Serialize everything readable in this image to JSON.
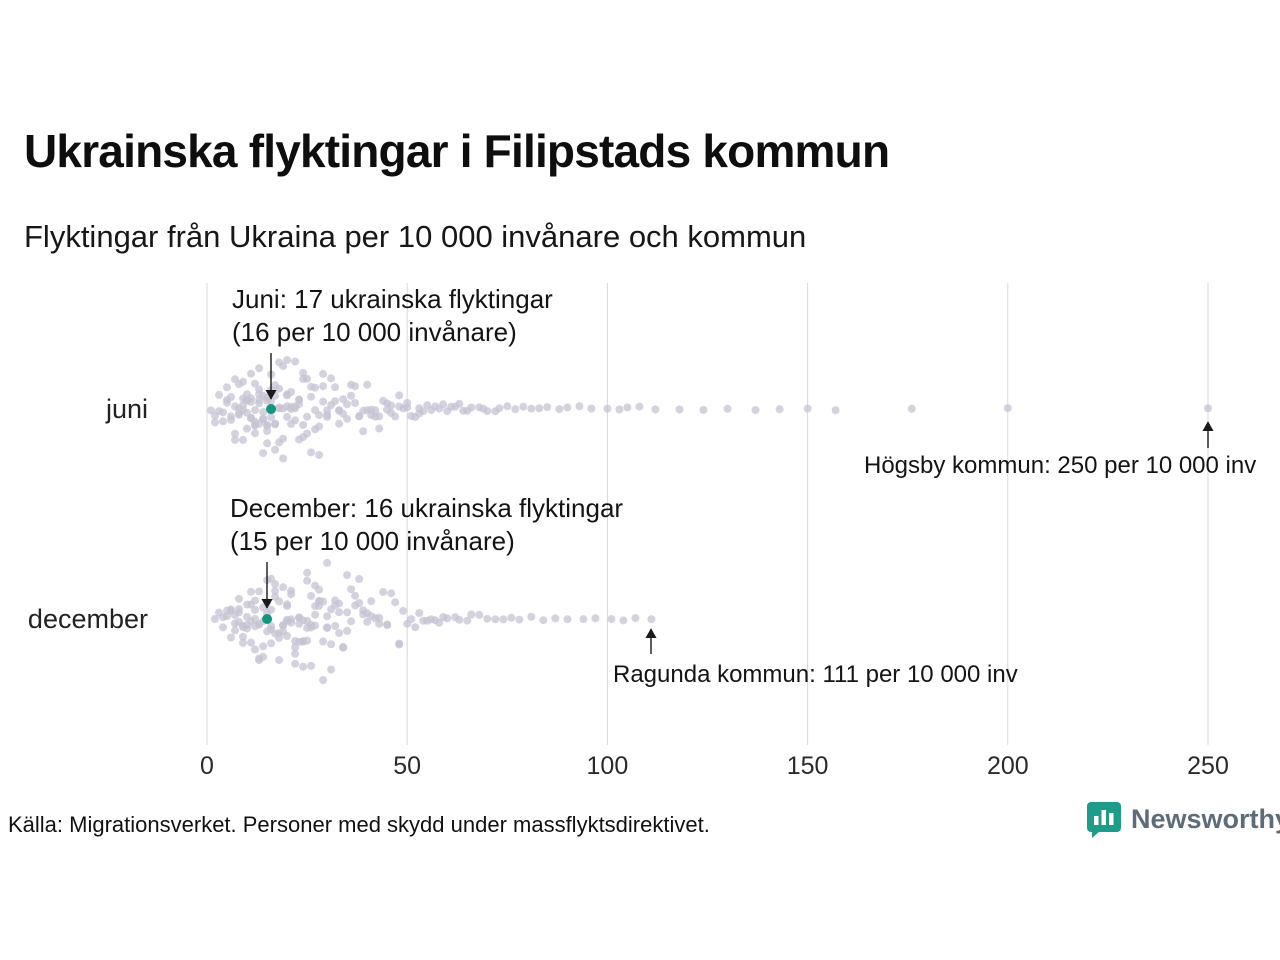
{
  "title": "Ukrainska flyktingar i Filipstads kommun",
  "subtitle": "Flyktingar från Ukraina per 10 000 invånare och kommun",
  "source": "Källa: Migrationsverket. Personer med skydd under massflyktsdirektivet.",
  "logo": {
    "text": "Newsworthy"
  },
  "colors": {
    "dot": "#c6c3d3",
    "highlight": "#11967c",
    "grid": "#d8d8d8",
    "arrow": "#1a1a1a",
    "logo_teal": "#1e9c8a",
    "logo_text": "#5e6c7a"
  },
  "chart_data": {
    "type": "scatter",
    "variant": "beeswarm-strip",
    "title": "Ukrainska flyktingar i Filipstads kommun",
    "xlabel": "Flyktingar från Ukraina per 10 000 invånare och kommun",
    "xlim": [
      0,
      250
    ],
    "x_ticks": [
      0,
      50,
      100,
      150,
      200,
      250
    ],
    "grid": "vertical",
    "rows": [
      {
        "label": "juni",
        "highlight": {
          "x": 16,
          "line1": "Juni: 17 ukrainska flyktingar",
          "line2": "(16 per 10 000 invånare)"
        },
        "outlier": {
          "x": 250,
          "text": "Högsby kommun: 250 per 10 000 inv"
        },
        "values": [
          1,
          2,
          2,
          3,
          3,
          4,
          4,
          5,
          5,
          5,
          6,
          6,
          6,
          7,
          7,
          7,
          7,
          8,
          8,
          8,
          8,
          9,
          9,
          9,
          9,
          9,
          10,
          10,
          10,
          10,
          10,
          11,
          11,
          11,
          11,
          11,
          12,
          12,
          12,
          12,
          12,
          12,
          13,
          13,
          13,
          13,
          13,
          13,
          14,
          14,
          14,
          14,
          14,
          15,
          15,
          15,
          15,
          15,
          15,
          16,
          16,
          16,
          16,
          16,
          17,
          17,
          17,
          17,
          17,
          18,
          18,
          18,
          18,
          18,
          19,
          19,
          19,
          19,
          20,
          20,
          20,
          20,
          20,
          21,
          21,
          21,
          21,
          22,
          22,
          22,
          22,
          23,
          23,
          23,
          23,
          24,
          24,
          24,
          24,
          25,
          25,
          25,
          26,
          26,
          26,
          27,
          27,
          27,
          28,
          28,
          28,
          29,
          29,
          29,
          30,
          30,
          30,
          31,
          31,
          32,
          32,
          33,
          33,
          33,
          34,
          34,
          35,
          35,
          36,
          36,
          37,
          37,
          38,
          38,
          39,
          39,
          40,
          40,
          41,
          41,
          42,
          42,
          43,
          43,
          44,
          45,
          45,
          46,
          46,
          47,
          48,
          48,
          49,
          50,
          50,
          51,
          52,
          53,
          53,
          54,
          55,
          56,
          57,
          58,
          59,
          60,
          61,
          62,
          63,
          64,
          65,
          66,
          68,
          69,
          70,
          72,
          73,
          75,
          77,
          79,
          81,
          83,
          85,
          88,
          90,
          93,
          96,
          100,
          103,
          105,
          108,
          112,
          118,
          124,
          130,
          137,
          143,
          150,
          157,
          176,
          200,
          250
        ]
      },
      {
        "label": "december",
        "highlight": {
          "x": 15,
          "line1": "December: 16 ukrainska flyktingar",
          "line2": "(15 per 10 000 invånare)"
        },
        "outlier": {
          "x": 111,
          "text": "Ragunda kommun: 111 per 10 000 inv"
        },
        "values": [
          2,
          3,
          4,
          4,
          5,
          5,
          6,
          6,
          6,
          7,
          7,
          7,
          8,
          8,
          8,
          8,
          9,
          9,
          9,
          9,
          10,
          10,
          10,
          10,
          11,
          11,
          11,
          11,
          12,
          12,
          12,
          12,
          12,
          13,
          13,
          13,
          13,
          13,
          14,
          14,
          14,
          14,
          15,
          15,
          15,
          15,
          16,
          16,
          16,
          16,
          16,
          17,
          17,
          17,
          17,
          18,
          18,
          18,
          18,
          19,
          19,
          19,
          19,
          20,
          20,
          20,
          20,
          20,
          21,
          21,
          21,
          21,
          22,
          22,
          22,
          22,
          23,
          23,
          23,
          23,
          24,
          24,
          24,
          24,
          25,
          25,
          25,
          25,
          25,
          26,
          26,
          26,
          26,
          27,
          27,
          27,
          27,
          28,
          28,
          28,
          28,
          29,
          29,
          29,
          30,
          30,
          30,
          30,
          31,
          31,
          31,
          32,
          32,
          32,
          33,
          33,
          33,
          34,
          34,
          35,
          35,
          35,
          36,
          36,
          37,
          37,
          38,
          38,
          39,
          39,
          40,
          40,
          41,
          41,
          42,
          43,
          43,
          44,
          45,
          45,
          46,
          47,
          48,
          48,
          49,
          50,
          51,
          52,
          53,
          54,
          55,
          56,
          57,
          58,
          59,
          60,
          62,
          63,
          65,
          66,
          68,
          70,
          72,
          74,
          76,
          78,
          81,
          84,
          87,
          90,
          94,
          97,
          101,
          104,
          107,
          111
        ]
      }
    ]
  }
}
